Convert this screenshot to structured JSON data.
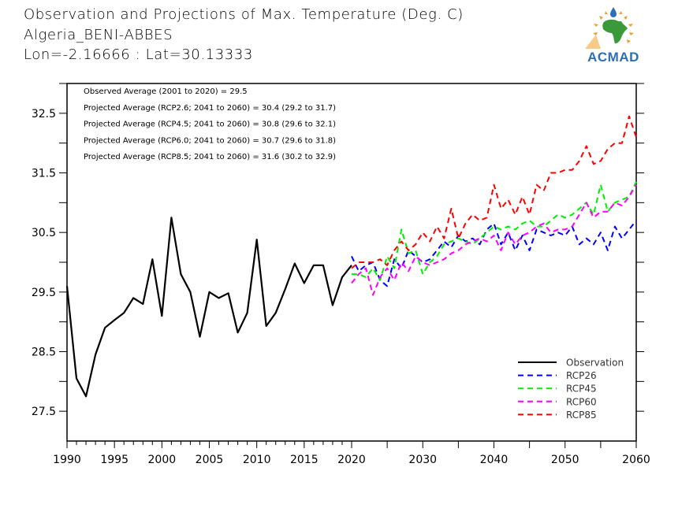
{
  "header": {
    "title_line1": "Observation and Projections of Max. Temperature (Deg. C)",
    "title_line2": "Algeria_BENI-ABBES",
    "title_line3": "Lon=-2.16666 : Lat=30.13333"
  },
  "logo": {
    "text": "ACMAD",
    "colors": {
      "text": "#2d6fb7",
      "continent": "#3a9a3a",
      "rays": "#f0a020",
      "drop": "#2d6fb7"
    }
  },
  "annotations": [
    "Observed Average (2001 to 2020) = 29.5",
    "Projected Average (RCP2.6; 2041 to 2060) = 30.4 (29.2 to 31.7)",
    "Projected Average (RCP4.5; 2041 to 2060) = 30.8 (29.6 to 32.1)",
    "Projected Average (RCP6.0; 2041 to 2060) = 30.7 (29.6 to 31.8)",
    "Projected Average (RCP8.5; 2041 to 2060) = 31.6 (30.2 to 32.9)"
  ],
  "chart_data": {
    "type": "line",
    "title": "Observation and Projections of Max. Temperature (Deg. C)",
    "xlabel": "",
    "ylabel": "",
    "xlim": [
      1990,
      2060
    ],
    "ylim": [
      27.0,
      33.0
    ],
    "x_axis_note": "x-axis is piecewise: 1990-2020 uses a wider scale than 2020-2060",
    "x_ticks_major": [
      1990,
      1995,
      2000,
      2005,
      2010,
      2015,
      2020,
      2030,
      2040,
      2050,
      2060
    ],
    "x_tick_labels": [
      "1990",
      "1995",
      "2000",
      "2005",
      "2010",
      "2015",
      "2020",
      "2030",
      "2040",
      "2050",
      "2060"
    ],
    "y_ticks_labeled": [
      27.5,
      28.5,
      29.5,
      30.5,
      31.5,
      32.5
    ],
    "y_tick_labels": [
      "27.5",
      "28.5",
      "29.5",
      "30.5",
      "31.5",
      "32.5"
    ],
    "y_ticks_minor": [
      28.0,
      29.0,
      30.0,
      31.0,
      32.0,
      33.0
    ],
    "grid": false,
    "legend_position": "bottom-right",
    "series": [
      {
        "name": "Observation",
        "color": "#000000",
        "dash": "solid",
        "x": [
          1990,
          1991,
          1992,
          1993,
          1994,
          1995,
          1996,
          1997,
          1998,
          1999,
          2000,
          2001,
          2002,
          2003,
          2004,
          2005,
          2006,
          2007,
          2008,
          2009,
          2010,
          2011,
          2012,
          2013,
          2014,
          2015,
          2016,
          2017,
          2018,
          2019,
          2020
        ],
        "values": [
          29.6,
          28.05,
          27.75,
          28.45,
          28.9,
          29.03,
          29.15,
          29.4,
          29.3,
          30.05,
          29.1,
          30.75,
          29.8,
          29.5,
          28.75,
          29.5,
          29.4,
          29.48,
          28.82,
          29.15,
          30.38,
          28.93,
          29.15,
          29.55,
          29.98,
          29.65,
          29.95,
          29.95,
          29.28,
          29.75,
          29.95
        ]
      },
      {
        "name": "RCP26",
        "color": "#0000ff",
        "dash": "dashed",
        "x_start": 2020,
        "values": [
          30.1,
          29.85,
          29.95,
          30.0,
          29.7,
          29.6,
          30.05,
          29.9,
          30.2,
          30.1,
          30.0,
          30.05,
          30.2,
          30.35,
          30.25,
          30.45,
          30.35,
          30.4,
          30.3,
          30.55,
          30.65,
          30.3,
          30.5,
          30.2,
          30.45,
          30.2,
          30.55,
          30.5,
          30.45,
          30.5,
          30.45,
          30.6,
          30.3,
          30.4,
          30.3,
          30.5,
          30.2,
          30.6,
          30.4,
          30.55,
          30.7
        ]
      },
      {
        "name": "RCP45",
        "color": "#00ee00",
        "dash": "dashed",
        "x_start": 2020,
        "values": [
          29.8,
          29.8,
          29.75,
          29.9,
          29.7,
          30.1,
          29.9,
          30.55,
          30.15,
          30.2,
          29.8,
          30.0,
          30.1,
          30.3,
          30.35,
          30.4,
          30.35,
          30.3,
          30.4,
          30.5,
          30.6,
          30.55,
          30.6,
          30.55,
          30.65,
          30.7,
          30.6,
          30.6,
          30.7,
          30.8,
          30.75,
          30.8,
          30.9,
          31.0,
          30.8,
          31.3,
          30.85,
          31.0,
          31.05,
          31.1,
          31.35
        ]
      },
      {
        "name": "RCP60",
        "color": "#ff00ff",
        "dash": "dashed",
        "x_start": 2020,
        "values": [
          29.65,
          29.8,
          29.9,
          29.45,
          29.75,
          29.9,
          29.7,
          30.0,
          29.85,
          30.1,
          30.0,
          29.95,
          30.0,
          30.05,
          30.15,
          30.2,
          30.3,
          30.35,
          30.4,
          30.35,
          30.45,
          30.2,
          30.5,
          30.3,
          30.45,
          30.5,
          30.6,
          30.65,
          30.5,
          30.55,
          30.55,
          30.6,
          30.8,
          31.0,
          30.75,
          30.85,
          30.85,
          31.0,
          30.95,
          31.1,
          31.3
        ]
      },
      {
        "name": "RCP85",
        "color": "#ff0000",
        "dash": "dashed",
        "x_start": 2020,
        "values": [
          29.9,
          30.0,
          30.0,
          30.0,
          30.05,
          29.95,
          30.2,
          30.35,
          30.2,
          30.3,
          30.5,
          30.35,
          30.6,
          30.4,
          30.9,
          30.4,
          30.65,
          30.8,
          30.7,
          30.75,
          31.3,
          30.9,
          31.05,
          30.8,
          31.1,
          30.8,
          31.3,
          31.2,
          31.5,
          31.5,
          31.55,
          31.55,
          31.7,
          31.95,
          31.65,
          31.7,
          31.9,
          32.0,
          32.0,
          32.45,
          32.1
        ]
      }
    ]
  }
}
